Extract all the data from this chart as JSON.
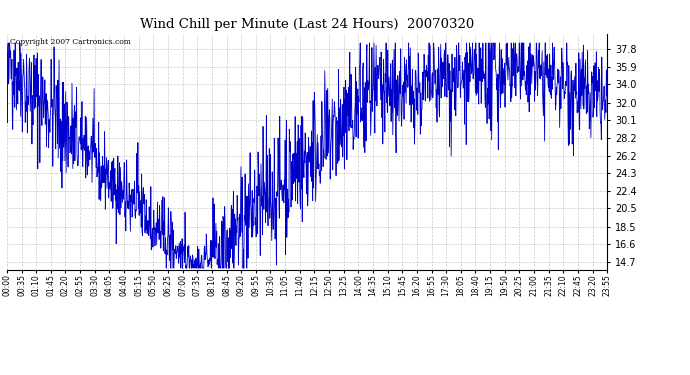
{
  "title": "Wind Chill per Minute (Last 24 Hours)  20070320",
  "copyright_text": "Copyright 2007 Cartronics.com",
  "line_color": "#0000cc",
  "bg_color": "#ffffff",
  "plot_bg_color": "#ffffff",
  "grid_color": "#bbbbbb",
  "y_ticks": [
    14.7,
    16.6,
    18.5,
    20.5,
    22.4,
    24.3,
    26.2,
    28.2,
    30.1,
    32.0,
    34.0,
    35.9,
    37.8
  ],
  "ylim": [
    13.8,
    39.5
  ],
  "x_labels": [
    "00:00",
    "00:35",
    "01:10",
    "01:45",
    "02:20",
    "02:55",
    "03:30",
    "04:05",
    "04:40",
    "05:15",
    "05:50",
    "06:25",
    "07:00",
    "07:35",
    "08:10",
    "08:45",
    "09:20",
    "09:55",
    "10:30",
    "11:05",
    "11:40",
    "12:15",
    "12:50",
    "13:25",
    "14:00",
    "14:35",
    "15:10",
    "15:45",
    "16:20",
    "16:55",
    "17:30",
    "18:05",
    "18:40",
    "19:15",
    "19:50",
    "20:25",
    "21:00",
    "21:35",
    "22:10",
    "22:45",
    "23:20",
    "23:55"
  ],
  "num_points": 1440,
  "seed": 42
}
